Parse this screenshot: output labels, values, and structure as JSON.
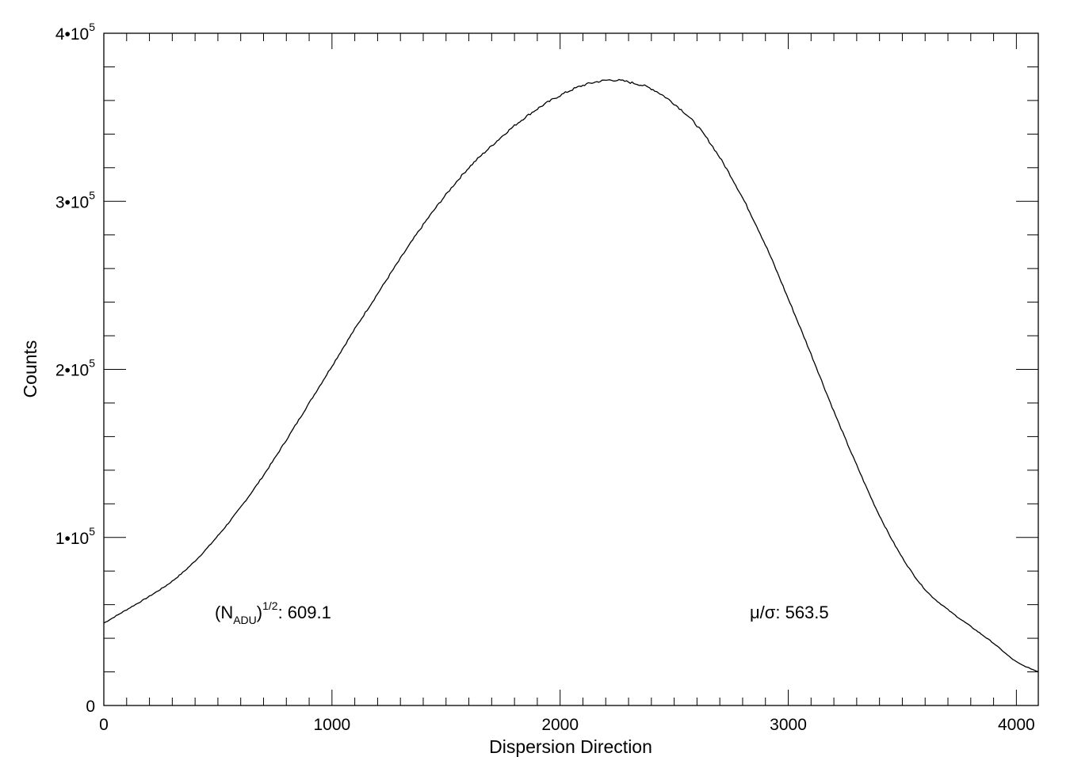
{
  "chart_data": {
    "type": "line",
    "title": "",
    "xlabel": "Dispersion Direction",
    "ylabel": "Counts",
    "xlim": [
      0,
      4096
    ],
    "ylim": [
      0,
      400000
    ],
    "x_ticks": [
      {
        "value": 0,
        "label": "0"
      },
      {
        "value": 1000,
        "label": "1000"
      },
      {
        "value": 2000,
        "label": "2000"
      },
      {
        "value": 3000,
        "label": "3000"
      },
      {
        "value": 4000,
        "label": "4000"
      }
    ],
    "y_ticks": [
      {
        "value": 0,
        "mantissa": "0",
        "exponent": ""
      },
      {
        "value": 100000,
        "mantissa": "1•10",
        "exponent": "5"
      },
      {
        "value": 200000,
        "mantissa": "2•10",
        "exponent": "5"
      },
      {
        "value": 300000,
        "mantissa": "3•10",
        "exponent": "5"
      },
      {
        "value": 400000,
        "mantissa": "4•10",
        "exponent": "5"
      }
    ],
    "series": [
      {
        "x": [
          0,
          100,
          200,
          300,
          400,
          500,
          600,
          700,
          800,
          900,
          1000,
          1100,
          1200,
          1300,
          1400,
          1500,
          1600,
          1700,
          1800,
          1900,
          2000,
          2100,
          2200,
          2250,
          2300,
          2400,
          2500,
          2600,
          2700,
          2800,
          2900,
          3000,
          3100,
          3200,
          3300,
          3400,
          3500,
          3600,
          3700,
          3800,
          3900,
          4000,
          4096
        ],
        "y": [
          49000,
          57000,
          65000,
          74000,
          86000,
          101000,
          118000,
          137000,
          158000,
          180000,
          202000,
          224000,
          245000,
          266000,
          286000,
          304000,
          320000,
          333000,
          345000,
          355000,
          363000,
          369000,
          372000,
          372000,
          371000,
          367000,
          358000,
          345000,
          326000,
          302000,
          274000,
          242000,
          209000,
          175000,
          143000,
          113000,
          88000,
          69000,
          57000,
          47000,
          37000,
          26000,
          20000
        ]
      }
    ],
    "annotations": {
      "left": {
        "prefix": "(N",
        "subscript": "ADU",
        "close": ")",
        "superscript": "1/2",
        "suffix": ": 609.1"
      },
      "right": {
        "text": "μ/σ: 563.5"
      }
    }
  }
}
